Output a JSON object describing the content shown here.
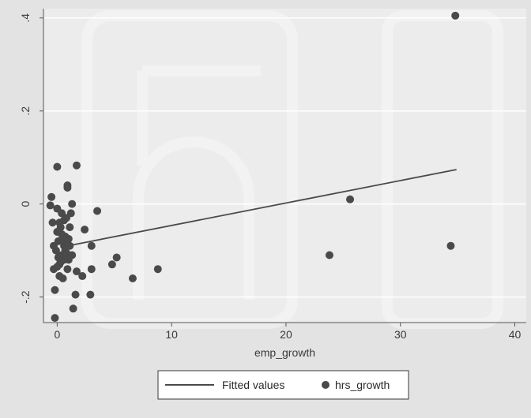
{
  "chart_data": {
    "type": "scatter",
    "xlabel": "emp_growth",
    "ylabel": "",
    "xlim": [
      -1.2,
      41
    ],
    "ylim": [
      -0.255,
      0.42
    ],
    "x_ticks": [
      0,
      10,
      20,
      30,
      40
    ],
    "x_tick_labels": [
      "0",
      "10",
      "20",
      "30",
      "40"
    ],
    "y_ticks": [
      -0.2,
      0,
      0.2,
      0.4
    ],
    "y_tick_labels": [
      "-.2",
      "0",
      ".2",
      ".4"
    ],
    "grid": "horizontal",
    "legend": {
      "placement": "bottom",
      "entries": [
        "Fitted values",
        "hrs_growth"
      ]
    },
    "series": [
      {
        "name": "hrs_growth",
        "kind": "scatter",
        "color": "#4a4a4a",
        "points": [
          [
            34.8,
            0.405
          ],
          [
            25.6,
            0.01
          ],
          [
            23.8,
            -0.11
          ],
          [
            34.4,
            -0.09
          ],
          [
            8.8,
            -0.14
          ],
          [
            6.6,
            -0.16
          ],
          [
            5.2,
            -0.115
          ],
          [
            4.8,
            -0.13
          ],
          [
            3.5,
            -0.015
          ],
          [
            3.0,
            -0.09
          ],
          [
            3.0,
            -0.14
          ],
          [
            2.9,
            -0.195
          ],
          [
            2.4,
            -0.055
          ],
          [
            2.2,
            -0.155
          ],
          [
            1.7,
            -0.145
          ],
          [
            1.7,
            0.083
          ],
          [
            1.6,
            -0.195
          ],
          [
            1.4,
            -0.225
          ],
          [
            1.3,
            0.0
          ],
          [
            1.2,
            -0.02
          ],
          [
            1.1,
            -0.05
          ],
          [
            1.0,
            -0.12
          ],
          [
            0.9,
            0.04
          ],
          [
            0.9,
            0.035
          ],
          [
            0.8,
            -0.03
          ],
          [
            0.7,
            -0.07
          ],
          [
            0.6,
            -0.09
          ],
          [
            0.5,
            -0.16
          ],
          [
            0.4,
            -0.11
          ],
          [
            0.3,
            -0.05
          ],
          [
            0.2,
            -0.13
          ],
          [
            0.1,
            -0.08
          ],
          [
            0.0,
            0.08
          ],
          [
            0.0,
            -0.01
          ],
          [
            -0.1,
            -0.1
          ],
          [
            -0.2,
            -0.185
          ],
          [
            -0.3,
            -0.14
          ],
          [
            -0.4,
            -0.04
          ],
          [
            -0.5,
            0.015
          ],
          [
            -0.6,
            -0.003
          ],
          [
            -0.2,
            -0.245
          ],
          [
            0.0,
            -0.06
          ],
          [
            0.6,
            -0.12
          ],
          [
            0.9,
            -0.14
          ],
          [
            1.1,
            -0.09
          ],
          [
            0.4,
            -0.02
          ],
          [
            0.2,
            -0.04
          ],
          [
            0.7,
            -0.1
          ],
          [
            0.3,
            -0.125
          ],
          [
            0.5,
            -0.075
          ],
          [
            0.8,
            -0.105
          ],
          [
            0.1,
            -0.115
          ],
          [
            1.0,
            -0.075
          ],
          [
            -0.3,
            -0.09
          ],
          [
            0.2,
            -0.155
          ],
          [
            0.6,
            -0.035
          ],
          [
            0.9,
            -0.085
          ],
          [
            0.4,
            -0.065
          ],
          [
            1.3,
            -0.11
          ],
          [
            0.0,
            -0.135
          ]
        ]
      },
      {
        "name": "Fitted values",
        "kind": "line",
        "color": "#4a4a4a",
        "points": [
          [
            0.3,
            -0.093
          ],
          [
            34.9,
            0.074
          ]
        ]
      }
    ]
  }
}
